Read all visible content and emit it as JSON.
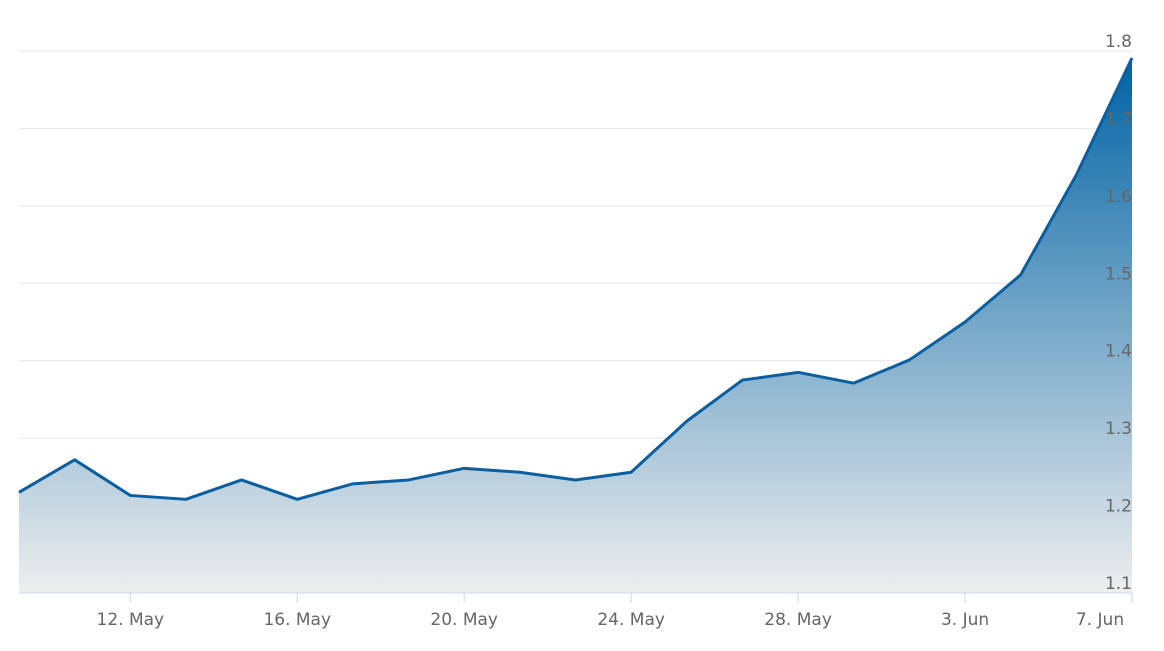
{
  "chart_data": {
    "type": "area",
    "categories": [
      null,
      null,
      "12. May",
      null,
      null,
      "16. May",
      null,
      null,
      "20. May",
      null,
      null,
      "24. May",
      null,
      null,
      "28. May",
      null,
      null,
      "3. Jun",
      null,
      null,
      "7. Jun"
    ],
    "series": [
      {
        "color": "#0b5fa0",
        "values": [
          1.23,
          1.272,
          1.226,
          1.221,
          1.246,
          1.221,
          1.241,
          1.246,
          1.261,
          1.256,
          1.246,
          1.256,
          1.322,
          1.375,
          1.385,
          1.371,
          1.401,
          1.45,
          1.511,
          1.64,
          1.791
        ]
      }
    ],
    "ylim": [
      1.1,
      1.8
    ],
    "yticks": [
      1.1,
      1.2,
      1.3,
      1.4,
      1.5,
      1.6,
      1.7,
      1.8
    ],
    "grid": true
  }
}
